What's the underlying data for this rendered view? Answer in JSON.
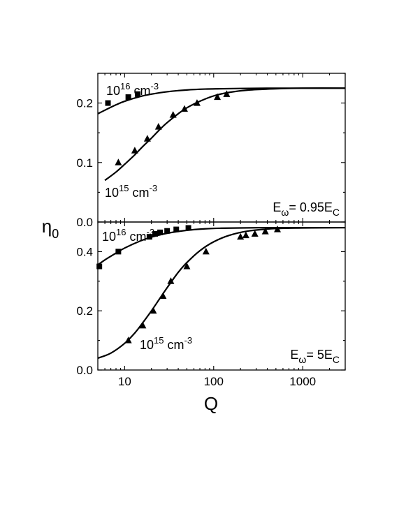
{
  "chart_data": [
    {
      "type": "scatter",
      "panel": "top",
      "xscale": "log",
      "xlim": [
        5,
        3000
      ],
      "ylim": [
        0,
        0.25
      ],
      "yticks": [
        0.0,
        0.1,
        0.2
      ],
      "ytick_labels": [
        "0.0",
        "0.1",
        "0.2"
      ],
      "annotation": {
        "base": "E",
        "sub1": "ω",
        "text": "= 0.95E",
        "sub2": "C"
      },
      "series": [
        {
          "label": {
            "base": "10",
            "exp": "16",
            "unit": " cm",
            "uexp": "-3"
          },
          "marker": "square",
          "points": {
            "x": [
              6.5,
              11,
              14
            ],
            "y": [
              0.2,
              0.21,
              0.215
            ]
          },
          "curve": {
            "x": [
              5,
              6,
              8,
              10,
              15,
              20,
              30,
              50,
              80,
              120,
              200,
              400,
              1000,
              3000
            ],
            "y": [
              0.182,
              0.188,
              0.197,
              0.203,
              0.211,
              0.215,
              0.219,
              0.222,
              0.2235,
              0.224,
              0.2245,
              0.225,
              0.225,
              0.225
            ]
          }
        },
        {
          "label": {
            "base": "10",
            "exp": "15",
            "unit": " cm",
            "uexp": "-3"
          },
          "marker": "triangle",
          "points": {
            "x": [
              8.5,
              13,
              18,
              24,
              35,
              47,
              65,
              110,
              140
            ],
            "y": [
              0.1,
              0.12,
              0.14,
              0.16,
              0.18,
              0.19,
              0.2,
              0.21,
              0.215
            ]
          },
          "curve": {
            "x": [
              6,
              8,
              10,
              13,
              16,
              20,
              25,
              30,
              40,
              50,
              70,
              100,
              150,
              250,
              500,
              1000,
              3000
            ],
            "y": [
              0.07,
              0.084,
              0.097,
              0.113,
              0.127,
              0.141,
              0.156,
              0.167,
              0.182,
              0.192,
              0.203,
              0.212,
              0.218,
              0.222,
              0.224,
              0.225,
              0.225
            ]
          }
        }
      ]
    },
    {
      "type": "scatter",
      "panel": "bottom",
      "xscale": "log",
      "xlim": [
        5,
        3000
      ],
      "ylim": [
        0,
        0.5
      ],
      "yticks": [
        0.0,
        0.2,
        0.4
      ],
      "ytick_labels": [
        "0.0",
        "0.2",
        "0.4"
      ],
      "xticks": [
        10,
        100,
        1000
      ],
      "xtick_labels": [
        "10",
        "100",
        "1000"
      ],
      "annotation": {
        "base": "E",
        "sub1": "ω",
        "text": "= 5E",
        "sub2": "C"
      },
      "series": [
        {
          "label": {
            "base": "10",
            "exp": "16",
            "unit": " cm",
            "uexp": "-3"
          },
          "marker": "square",
          "points": {
            "x": [
              5.2,
              8.5,
              19,
              22,
              25,
              30,
              38,
              52
            ],
            "y": [
              0.35,
              0.4,
              0.45,
              0.46,
              0.465,
              0.47,
              0.475,
              0.48
            ]
          },
          "curve": {
            "x": [
              5,
              6,
              8,
              10,
              15,
              20,
              30,
              50,
              80,
              120,
              200,
              400,
              1000,
              3000
            ],
            "y": [
              0.355,
              0.372,
              0.395,
              0.412,
              0.436,
              0.449,
              0.462,
              0.472,
              0.477,
              0.479,
              0.48,
              0.481,
              0.481,
              0.481
            ]
          }
        },
        {
          "label": {
            "base": "10",
            "exp": "15",
            "unit": " cm",
            "uexp": "-3"
          },
          "marker": "triangle",
          "points": {
            "x": [
              11,
              16,
              21,
              27,
              33,
              50,
              82,
              200,
              230,
              290,
              380,
              520
            ],
            "y": [
              0.1,
              0.15,
              0.2,
              0.25,
              0.3,
              0.35,
              0.4,
              0.45,
              0.455,
              0.46,
              0.468,
              0.475
            ]
          },
          "curve": {
            "x": [
              5,
              7,
              10,
              13,
              16,
              20,
              25,
              30,
              40,
              50,
              70,
              100,
              150,
              250,
              500,
              1000,
              3000
            ],
            "y": [
              0.04,
              0.057,
              0.09,
              0.125,
              0.16,
              0.2,
              0.243,
              0.278,
              0.33,
              0.363,
              0.403,
              0.433,
              0.455,
              0.47,
              0.478,
              0.48,
              0.481
            ]
          }
        }
      ]
    }
  ],
  "ylabel": {
    "base": "η",
    "sub": "0"
  },
  "xlabel": "Q"
}
